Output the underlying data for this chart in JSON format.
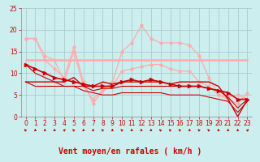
{
  "x": [
    0,
    1,
    2,
    3,
    4,
    5,
    6,
    7,
    8,
    9,
    10,
    11,
    12,
    13,
    14,
    15,
    16,
    17,
    18,
    19,
    20,
    21,
    22,
    23
  ],
  "line1": [
    12,
    11,
    10,
    9,
    8.5,
    8,
    7.5,
    7,
    7,
    7,
    8,
    8.5,
    8,
    8.5,
    8,
    7.5,
    7,
    7,
    7,
    6.5,
    6,
    5.5,
    4,
    4
  ],
  "line2": [
    18,
    18,
    14,
    13,
    8,
    15,
    7,
    4,
    6,
    7,
    10.5,
    11,
    11.5,
    12,
    12,
    11,
    10.5,
    10.5,
    8,
    7,
    5,
    4.5,
    5,
    4
  ],
  "line3": [
    13,
    13,
    13,
    13,
    13,
    13,
    13,
    13,
    13,
    13,
    13,
    13,
    13,
    13,
    13,
    13,
    13,
    13,
    13,
    13,
    13,
    13,
    13,
    13
  ],
  "line4": [
    18,
    18,
    13,
    11,
    9,
    16,
    8,
    3,
    6,
    8,
    15,
    17,
    21,
    18,
    17,
    17,
    17,
    16.5,
    14,
    9,
    5,
    4,
    3,
    5.5
  ],
  "line5": [
    8,
    8,
    8,
    8,
    8,
    9,
    7,
    7,
    8,
    7.5,
    8,
    8,
    8,
    8,
    8,
    7.5,
    8,
    8,
    8,
    8,
    7,
    4,
    0,
    4
  ],
  "line6": [
    8,
    7,
    7,
    7,
    7,
    7,
    7,
    6,
    6.5,
    6.5,
    7,
    7,
    7,
    7,
    7,
    7,
    7,
    7,
    7,
    6.5,
    6,
    4.5,
    2,
    4
  ],
  "line7": [
    12,
    10,
    9,
    8,
    7,
    7,
    6,
    5.5,
    5,
    5,
    5.5,
    5.5,
    5.5,
    5.5,
    5.5,
    5,
    5,
    5,
    5,
    4.5,
    4,
    3.5,
    1,
    3.5
  ],
  "color_dark": "#cc0000",
  "color_light": "#ffaaaa",
  "color_medium": "#ff6666",
  "background": "#cceeee",
  "grid_color": "#aacccc",
  "xlabel": "Vent moyen/en rafales ( km/h )",
  "ylim": [
    0,
    25
  ],
  "xlim": [
    -0.5,
    23.5
  ],
  "yticks": [
    0,
    5,
    10,
    15,
    20,
    25
  ],
  "xticks": [
    0,
    1,
    2,
    3,
    4,
    5,
    6,
    7,
    8,
    9,
    10,
    11,
    12,
    13,
    14,
    15,
    16,
    17,
    18,
    19,
    20,
    21,
    22,
    23
  ],
  "arrow_dirs": [
    315,
    0,
    0,
    0,
    45,
    315,
    0,
    0,
    315,
    0,
    315,
    0,
    0,
    0,
    315,
    315,
    315,
    0,
    315,
    315,
    0,
    0,
    0,
    45
  ]
}
